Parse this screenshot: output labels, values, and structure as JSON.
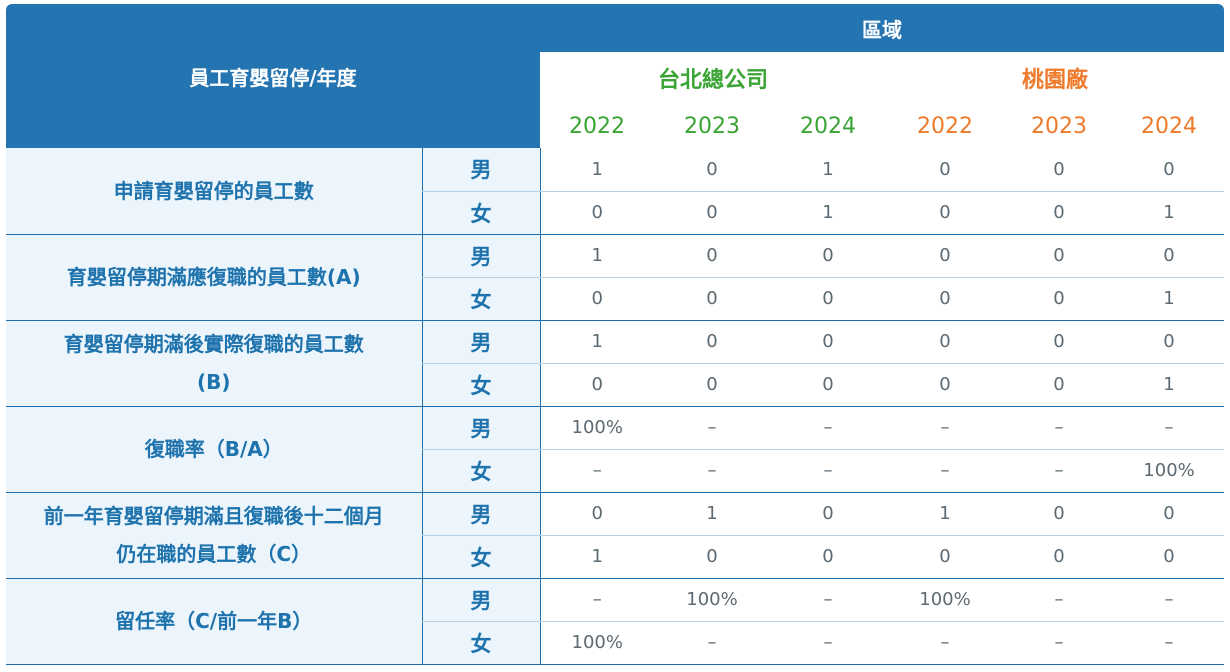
{
  "header": {
    "title": "員工育嬰留停/年度",
    "region": "區域",
    "sites": [
      {
        "name": "台北總公司",
        "years": [
          "2022",
          "2023",
          "2024"
        ],
        "color": "#3aa534"
      },
      {
        "name": "桃園廠",
        "years": [
          "2022",
          "2023",
          "2024"
        ],
        "color": "#ee7a2c"
      }
    ]
  },
  "rows": [
    {
      "category": "申請育嬰留停的員工數",
      "male_label": "男",
      "female_label": "女",
      "male": [
        "1",
        "0",
        "1",
        "0",
        "0",
        "0"
      ],
      "female": [
        "0",
        "0",
        "1",
        "0",
        "0",
        "1"
      ]
    },
    {
      "category": "育嬰留停期滿應復職的員工數(A)",
      "male_label": "男",
      "female_label": "女",
      "male": [
        "1",
        "0",
        "0",
        "0",
        "0",
        "0"
      ],
      "female": [
        "0",
        "0",
        "0",
        "0",
        "0",
        "1"
      ]
    },
    {
      "category": "育嬰留停期滿後實際復職的員工數(B)",
      "male_label": "男",
      "female_label": "女",
      "male": [
        "1",
        "0",
        "0",
        "0",
        "0",
        "0"
      ],
      "female": [
        "0",
        "0",
        "0",
        "0",
        "0",
        "1"
      ]
    },
    {
      "category": "復職率（B/A）",
      "male_label": "男",
      "female_label": "女",
      "male": [
        "100%",
        "–",
        "–",
        "–",
        "–",
        "–"
      ],
      "female": [
        "–",
        "–",
        "–",
        "–",
        "–",
        "100%"
      ]
    },
    {
      "category": "前一年育嬰留停期滿且復職後十二個月仍在職的員工數（C）",
      "male_label": "男",
      "female_label": "女",
      "male": [
        "0",
        "1",
        "0",
        "1",
        "0",
        "0"
      ],
      "female": [
        "1",
        "0",
        "0",
        "0",
        "0",
        "0"
      ]
    },
    {
      "category": "留任率（C/前一年B）",
      "male_label": "男",
      "female_label": "女",
      "male": [
        "–",
        "100%",
        "–",
        "100%",
        "–",
        "–"
      ],
      "female": [
        "100%",
        "–",
        "–",
        "–",
        "–",
        "–"
      ]
    }
  ]
}
